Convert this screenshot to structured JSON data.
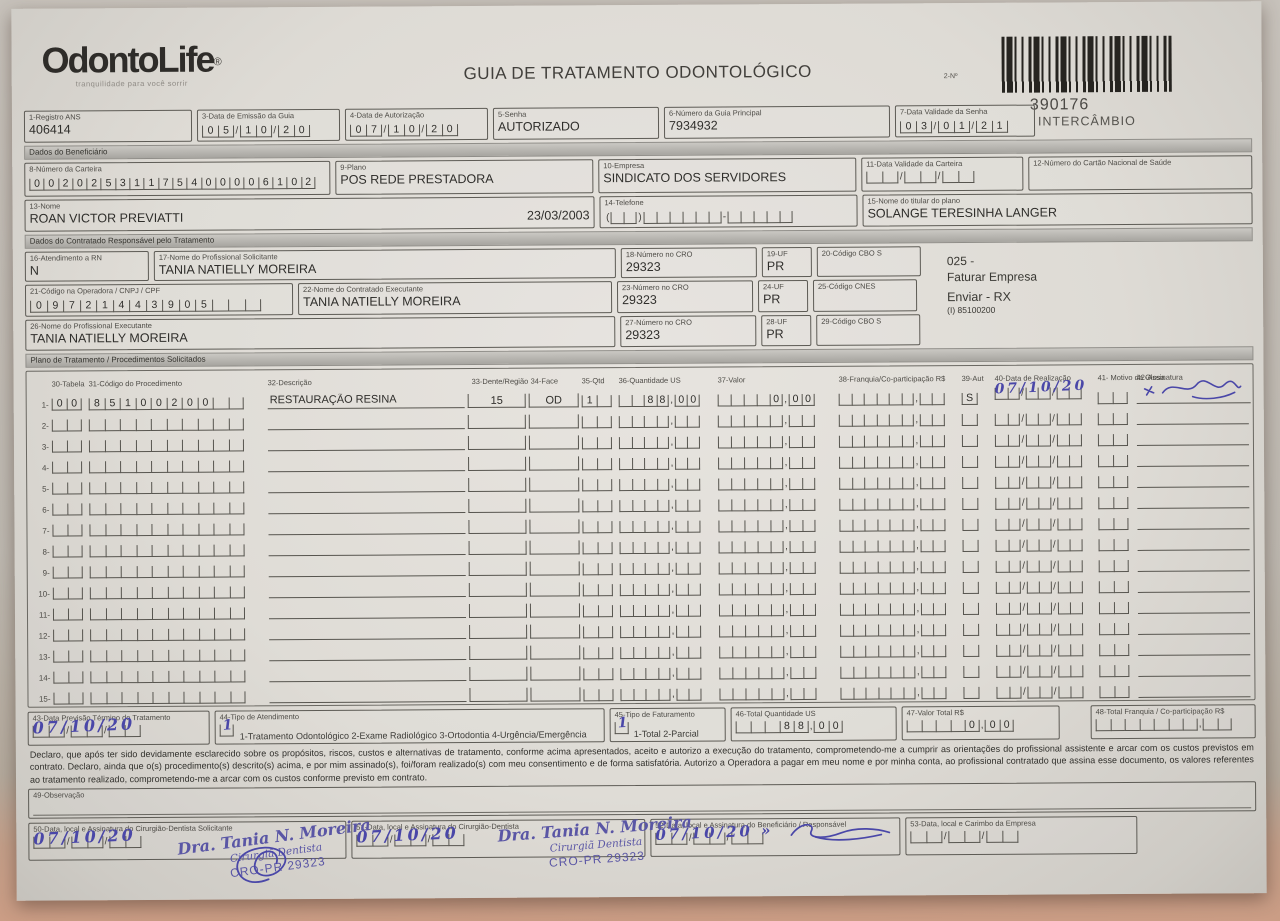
{
  "header": {
    "logo_text": "OdontoLife",
    "logo_reg": "®",
    "tagline": "tranquilidade para você sorrir",
    "title": "GUIA DE TRATAMENTO ODONTOLÓGICO",
    "barcode_label": "2-Nº",
    "guide_number": "390176",
    "guide_type": "INTERCÂMBIO"
  },
  "top_fields": {
    "registro_ans": {
      "label": "1-Registro ANS",
      "value": "406414"
    },
    "data_emissao": {
      "label": "3-Data de Emissão da Guia",
      "value": "05/10/20"
    },
    "data_autorizacao": {
      "label": "4-Data de Autorização",
      "value": "07/10/20"
    },
    "senha": {
      "label": "5-Senha",
      "value": "AUTORIZADO"
    },
    "numero_guia": {
      "label": "6-Número da Guia Principal",
      "value": "7934932"
    },
    "validade_senha": {
      "label": "7-Data Validade da Senha",
      "value": "03/01/21"
    }
  },
  "beneficiario": {
    "section_title": "Dados do Beneficiário",
    "numero_carteira": {
      "label": "8-Número da Carteira",
      "value": "00202531175400006102"
    },
    "plano": {
      "label": "9-Plano",
      "value": "POS REDE PRESTADORA"
    },
    "empresa": {
      "label": "10-Empresa",
      "value": "SINDICATO DOS SERVIDORES"
    },
    "validade_carteira": {
      "label": "11-Data Validade da Carteira",
      "value": "  /  /  "
    },
    "cartao_nacional": {
      "label": "12-Número do Cartão Nacional de Saúde",
      "value": ""
    },
    "nome": {
      "label": "13-Nome",
      "value": "ROAN VICTOR PREVIATTI",
      "nascimento": "23/03/2003"
    },
    "telefone": {
      "label": "14-Telefone",
      "value": "(  )      -     "
    },
    "titular": {
      "label": "15-Nome do titular do plano",
      "value": "SOLANGE TERESINHA LANGER"
    }
  },
  "contratado": {
    "section_title": "Dados do Contratado Responsável pelo Tratamento",
    "atendimento_rn": {
      "label": "16-Atendimento a RN",
      "value": "N"
    },
    "prof_solicitante": {
      "label": "17-Nome do Profissional Solicitante",
      "value": "TANIA NATIELLY MOREIRA"
    },
    "cro_18": {
      "label": "18-Número no CRO",
      "value": "29323"
    },
    "uf_19": {
      "label": "19-UF",
      "value": "PR"
    },
    "cbo_20": {
      "label": "20-Código CBO S",
      "value": ""
    },
    "codigo_operadora": {
      "label": "21-Código na Operadora / CNPJ / CPF",
      "value": "09721443905   "
    },
    "contratado_exec": {
      "label": "22-Nome do Contratado Executante",
      "value": "TANIA NATIELLY MOREIRA"
    },
    "cro_23": {
      "label": "23-Número no CRO",
      "value": "29323"
    },
    "uf_24": {
      "label": "24-UF",
      "value": "PR"
    },
    "cnes_25": {
      "label": "25-Código CNES",
      "value": ""
    },
    "prof_executante": {
      "label": "26-Nome do Profissional Executante",
      "value": "TANIA NATIELLY MOREIRA"
    },
    "cro_27": {
      "label": "27-Número no CRO",
      "value": "29323"
    },
    "uf_28": {
      "label": "28-UF",
      "value": "PR"
    },
    "cbo_29": {
      "label": "29-Código CBO S",
      "value": ""
    },
    "notes": {
      "n1": "025 -",
      "n2": "Faturar Empresa",
      "n3": "Enviar - RX",
      "n4": "(I) 85100200"
    }
  },
  "tratamento": {
    "section_title": "Plano de Tratamento / Procedimentos Solicitados",
    "headers": {
      "tabela": "30-Tabela",
      "codigo": "31-Código do Procedimento",
      "descricao": "32-Descrição",
      "dente": "33-Dente/Região",
      "face": "34-Face",
      "qtd": "35-Qtd",
      "us": "36-Quantidade US",
      "valor": "37-Valor",
      "franquia": "38-Franquia/Co-participação R$",
      "aut": "39-Aut",
      "data": "40-Data de Realização",
      "motivo": "41- Motivo da Glosa",
      "assinatura": "42-Assinatura"
    },
    "row1": {
      "num": "1-",
      "tabela": "00",
      "codigo": "85100200  ",
      "descricao": "RESTAURAÇÃO RESINA",
      "dente": "15",
      "face": "OD",
      "qtd": "1 ",
      "us": "  88,00",
      "valor": "    0,00",
      "franquia": "      ,  ",
      "aut": "S",
      "data_print": "  /  /  ",
      "data_hand": "07/10/20",
      "motivo": "  "
    },
    "empty_row": {
      "tabela": "  ",
      "codigo": "          ",
      "qtd": "  ",
      "us": "    ,  ",
      "valor": "     ,  ",
      "franquia": "      ,  ",
      "aut": " ",
      "data": "  /  /  ",
      "motivo": "  "
    },
    "empty_row_numbers": [
      "2-",
      "3-",
      "4-",
      "5-",
      "6-",
      "7-",
      "8-",
      "9-",
      "10-",
      "11-",
      "12-",
      "13-",
      "14-",
      "15-"
    ]
  },
  "rodape": {
    "previsao": {
      "label": "43-Data Previsão Término do Tratamento",
      "print": "  /  /  ",
      "hand": "07/10/20"
    },
    "tipo_atendimento": {
      "label": "44-Tipo de Atendimento",
      "check": " ",
      "hand": "1",
      "options": "1-Tratamento Odontológico  2-Exame Radiológico  3-Ortodontia  4-Urgência/Emergência"
    },
    "tipo_faturamento": {
      "label": "45-Tipo de Faturamento",
      "check": " ",
      "hand": "1",
      "options": "1-Total  2-Parcial"
    },
    "total_us": {
      "label": "46-Total Quantidade US",
      "value": "   88,00"
    },
    "valor_total": {
      "label": "47-Valor Total R$",
      "value": "    0,00"
    },
    "total_franquia": {
      "label": "48-Total Franquia / Co-participação R$",
      "value": "       ,  "
    }
  },
  "declaracao": "Declaro, que após ter sido devidamente esclarecido sobre os propósitos, riscos, custos e alternativas de tratamento, conforme acima apresentados, aceito e autorizo a execução do tratamento, comprometendo-me a cumprir as orientações do profissional assistente e arcar com os custos previstos em contrato. Declaro, ainda que o(s) procedimento(s) descrito(s) acima, e por mim assinado(s), foi/foram realizado(s) com meu consentimento e de forma satisfatória. Autorizo a Operadora a pagar em meu nome e por minha conta, ao profissional contratado que assina esse documento, os valores referentes ao tratamento realizado, comprometendo-me a arcar com os custos conforme previsto em contrato.",
  "observacao": {
    "label": "49-Observação"
  },
  "assinaturas": {
    "solicitante": {
      "label": "50-Data, local e Assinatura do Cirurgião-Dentista Solicitante",
      "print": "  /  /  ",
      "hand": "07/10/20"
    },
    "dentista": {
      "label": "51-Data, local e Assinatura do Cirurgião-Dentista",
      "print": "  /  /  ",
      "hand": "07/10/20"
    },
    "beneficiario": {
      "label": "52-Data, local e Assinatura do Beneficiário / Responsável",
      "print": "  /  /  ",
      "hand": "07/10/20 »"
    },
    "empresa": {
      "label": "53-Data, local e Carimbo da Empresa",
      "print": "  /  /  "
    },
    "stamp": {
      "l1": "Dra. Tania N. Moreira",
      "l2": "Cirurgiã Dentista",
      "l3": "CRO-PR 29323"
    }
  }
}
